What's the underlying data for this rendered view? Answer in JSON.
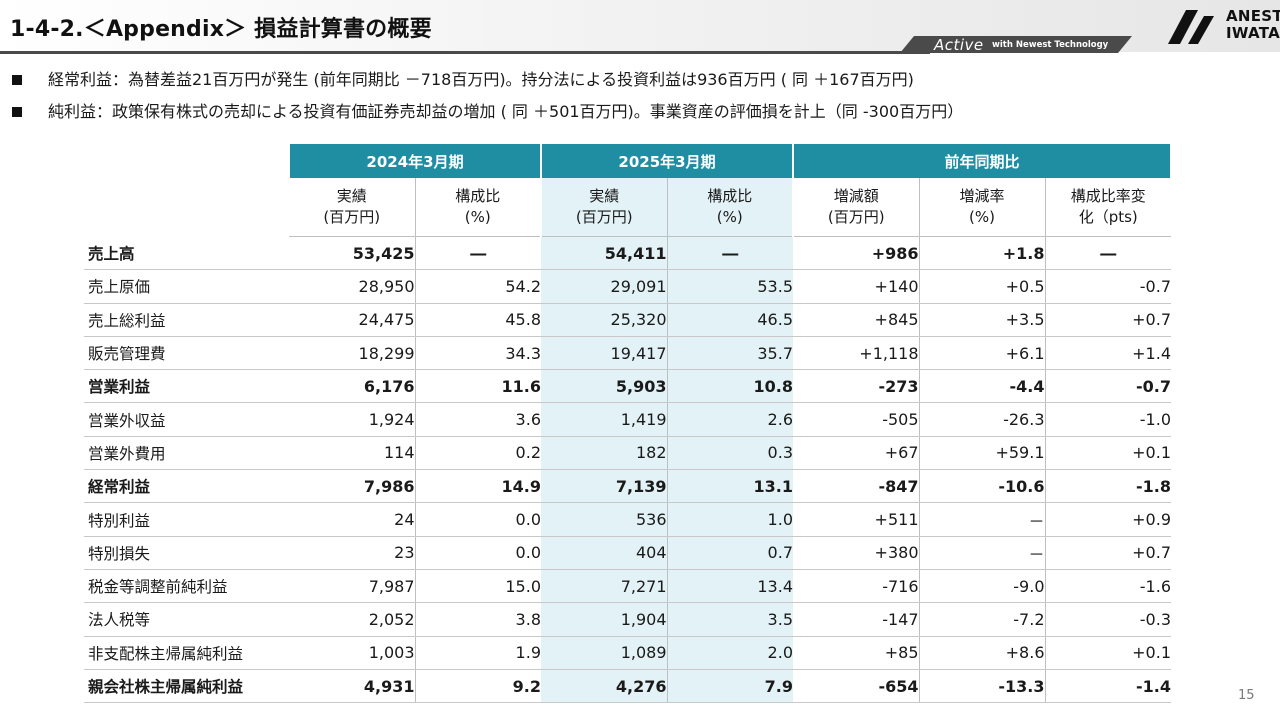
{
  "header": {
    "title": "1-4-2.＜Appendix＞ 損益計算書の概要",
    "tagline_active": "Active",
    "tagline_rest": "with Newest Technology",
    "logo_line1": "ANEST",
    "logo_line2": "IWATA"
  },
  "bullets": [
    "経常利益：為替差益21百万円が発生 (前年同期比 －718百万円)。持分法による投資利益は936百万円 ( 同 ＋167百万円)",
    "純利益：政策保有株式の売却による投資有価証券売却益の増加 ( 同 ＋501百万円)。事業資産の評価損を計上（同 -300百万円）"
  ],
  "table": {
    "group_headers": [
      "2024年3月期",
      "2025年3月期",
      "前年同期比"
    ],
    "sub_headers": [
      "実績\n(百万円)",
      "構成比\n(%)",
      "実績\n(百万円)",
      "構成比\n(%)",
      "増減額\n(百万円)",
      "増減率\n(%)",
      "構成比率変\n化（pts)"
    ],
    "rows": [
      {
        "label": "売上高",
        "bold": true,
        "cells": [
          "53,425",
          "―",
          "54,411",
          "―",
          "+986",
          "+1.8",
          "―"
        ]
      },
      {
        "label": "売上原価",
        "bold": false,
        "cells": [
          "28,950",
          "54.2",
          "29,091",
          "53.5",
          "+140",
          "+0.5",
          "-0.7"
        ]
      },
      {
        "label": "売上総利益",
        "bold": false,
        "cells": [
          "24,475",
          "45.8",
          "25,320",
          "46.5",
          "+845",
          "+3.5",
          "+0.7"
        ]
      },
      {
        "label": "販売管理費",
        "bold": false,
        "cells": [
          "18,299",
          "34.3",
          "19,417",
          "35.7",
          "+1,118",
          "+6.1",
          "+1.4"
        ]
      },
      {
        "label": "営業利益",
        "bold": true,
        "cells": [
          "6,176",
          "11.6",
          "5,903",
          "10.8",
          "-273",
          "-4.4",
          "-0.7"
        ]
      },
      {
        "label": "営業外収益",
        "bold": false,
        "cells": [
          "1,924",
          "3.6",
          "1,419",
          "2.6",
          "-505",
          "-26.3",
          "-1.0"
        ]
      },
      {
        "label": "営業外費用",
        "bold": false,
        "cells": [
          "114",
          "0.2",
          "182",
          "0.3",
          "+67",
          "+59.1",
          "+0.1"
        ]
      },
      {
        "label": "経常利益",
        "bold": true,
        "cells": [
          "7,986",
          "14.9",
          "7,139",
          "13.1",
          "-847",
          "-10.6",
          "-1.8"
        ]
      },
      {
        "label": "特別利益",
        "bold": false,
        "cells": [
          "24",
          "0.0",
          "536",
          "1.0",
          "+511",
          "－",
          "+0.9"
        ]
      },
      {
        "label": "特別損失",
        "bold": false,
        "cells": [
          "23",
          "0.0",
          "404",
          "0.7",
          "+380",
          "－",
          "+0.7"
        ]
      },
      {
        "label": "税金等調整前純利益",
        "bold": false,
        "cells": [
          "7,987",
          "15.0",
          "7,271",
          "13.4",
          "-716",
          "-9.0",
          "-1.6"
        ]
      },
      {
        "label": "法人税等",
        "bold": false,
        "cells": [
          "2,052",
          "3.8",
          "1,904",
          "3.5",
          "-147",
          "-7.2",
          "-0.3"
        ]
      },
      {
        "label": "非支配株主帰属純利益",
        "bold": false,
        "cells": [
          "1,003",
          "1.9",
          "1,089",
          "2.0",
          "+85",
          "+8.6",
          "+0.1"
        ]
      },
      {
        "label": "親会社株主帰属純利益",
        "bold": true,
        "cells": [
          "4,931",
          "9.2",
          "4,276",
          "7.9",
          "-654",
          "-13.3",
          "-1.4"
        ]
      }
    ]
  },
  "page_number": "15",
  "colors": {
    "header_teal": "#1f8ea3",
    "shade": "#e3f2f6"
  }
}
